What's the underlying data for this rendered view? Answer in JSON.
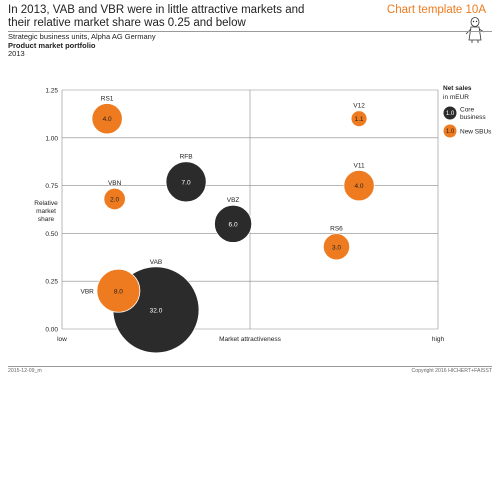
{
  "header": {
    "headline": "In 2013, VAB and VBR were in little attractive markets and their relative market share was 0.25 and below",
    "template_label": "Chart template 10A",
    "meta_line1": "Strategic business units, Alpha AG Germany",
    "meta_line2": "Product market portfolio",
    "meta_line3": "2013"
  },
  "footer": {
    "left": "2015-12-09_m",
    "right": "Copyright 2016 HICHERT+FAISST"
  },
  "colors": {
    "core": "#2b2b2b",
    "new": "#ee7b1f",
    "grid": "#8a8a8a",
    "accent": "#ee7b1f"
  },
  "chart_data": {
    "type": "bubble",
    "title": "",
    "xlabel": "Market attractiveness",
    "x_tick_low": "low",
    "x_tick_high": "high",
    "ylabel": [
      "Relative",
      "market",
      "share"
    ],
    "xlim": [
      0,
      10
    ],
    "ylim": [
      0,
      1.25
    ],
    "y_ticks": [
      0.0,
      0.25,
      0.5,
      0.75,
      1.0,
      1.25
    ],
    "y_tick_labels": [
      "0.00",
      "0.25",
      "0.50",
      "0.75",
      "1.00",
      "1.25"
    ],
    "x_divider": 5,
    "y_divider": 0.5,
    "legend": {
      "title": "Net sales",
      "subtitle": "in mEUR",
      "items": [
        {
          "sample": "1.0",
          "label": "Core business",
          "group": "core"
        },
        {
          "sample": "1.0",
          "label": "New SBUs",
          "group": "new"
        }
      ]
    },
    "points": [
      {
        "name": "RS1",
        "x": 1.2,
        "y": 1.1,
        "size": 4.0,
        "label": "4.0",
        "group": "new",
        "name_pos": "above"
      },
      {
        "name": "VBN",
        "x": 1.4,
        "y": 0.68,
        "size": 2.0,
        "label": "2.0",
        "group": "new",
        "name_pos": "above"
      },
      {
        "name": "RFB",
        "x": 3.3,
        "y": 0.77,
        "size": 7.0,
        "label": "7.0",
        "group": "core",
        "name_pos": "above"
      },
      {
        "name": "VBZ",
        "x": 4.55,
        "y": 0.55,
        "size": 6.0,
        "label": "6.0",
        "group": "core",
        "name_pos": "above"
      },
      {
        "name": "VAB",
        "x": 2.5,
        "y": 0.1,
        "size": 32.0,
        "label": "32.0",
        "group": "core",
        "name_pos": "above"
      },
      {
        "name": "VBR",
        "x": 1.5,
        "y": 0.2,
        "size": 8.0,
        "label": "8.0",
        "group": "new",
        "name_pos": "left"
      },
      {
        "name": "V12",
        "x": 7.9,
        "y": 1.1,
        "size": 1.1,
        "label": "1.1",
        "group": "new",
        "name_pos": "above"
      },
      {
        "name": "V11",
        "x": 7.9,
        "y": 0.75,
        "size": 4.0,
        "label": "4.0",
        "group": "new",
        "name_pos": "above"
      },
      {
        "name": "RS6",
        "x": 7.3,
        "y": 0.43,
        "size": 3.0,
        "label": "3.0",
        "group": "new",
        "name_pos": "above"
      }
    ]
  }
}
